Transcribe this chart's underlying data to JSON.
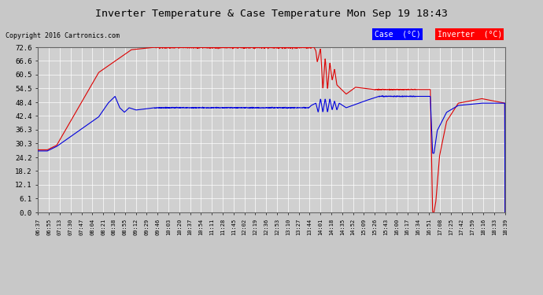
{
  "title": "Inverter Temperature & Case Temperature Mon Sep 19 18:43",
  "copyright": "Copyright 2016 Cartronics.com",
  "bg_color": "#c8c8c8",
  "plot_bg_color": "#d0d0d0",
  "grid_color": "#ffffff",
  "ylim": [
    0.0,
    72.6
  ],
  "yticks": [
    0.0,
    6.1,
    12.1,
    18.2,
    24.2,
    30.3,
    36.3,
    42.4,
    48.4,
    54.5,
    60.5,
    66.6,
    72.6
  ],
  "case_color": "#0000dd",
  "inverter_color": "#dd0000",
  "legend_case_bg": "#0000ff",
  "legend_inverter_bg": "#ff0000",
  "x_labels": [
    "06:37",
    "06:55",
    "07:13",
    "07:30",
    "07:47",
    "08:04",
    "08:21",
    "08:38",
    "08:55",
    "09:12",
    "09:29",
    "09:46",
    "10:03",
    "10:20",
    "10:37",
    "10:54",
    "11:11",
    "11:28",
    "11:45",
    "12:02",
    "12:19",
    "12:36",
    "12:53",
    "13:10",
    "13:27",
    "13:44",
    "14:01",
    "14:18",
    "14:35",
    "14:52",
    "15:09",
    "15:26",
    "15:43",
    "16:00",
    "16:17",
    "16:34",
    "16:51",
    "17:08",
    "17:25",
    "17:42",
    "17:59",
    "18:16",
    "18:33",
    "18:39"
  ]
}
